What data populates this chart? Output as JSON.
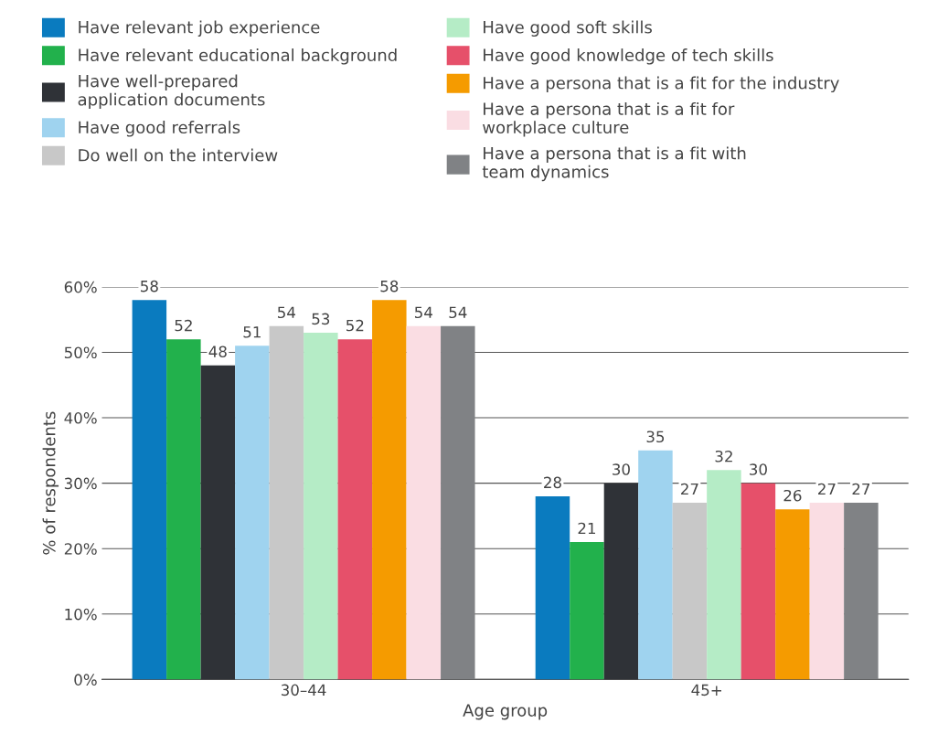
{
  "chart_data": {
    "type": "bar",
    "xlabel": "Age group",
    "ylabel": "% of respondents",
    "categories": [
      "30–44",
      "45+"
    ],
    "series": [
      {
        "name": "Have relevant job experience",
        "color": "#0a7bbf",
        "values": [
          58,
          28
        ]
      },
      {
        "name": "Have relevant educational background",
        "color": "#22b14c",
        "values": [
          52,
          21
        ]
      },
      {
        "name": "Have well-prepared\napplication documents",
        "color": "#2f3237",
        "values": [
          48,
          30
        ]
      },
      {
        "name": "Have good referrals",
        "color": "#9fd3ef",
        "values": [
          51,
          35
        ]
      },
      {
        "name": "Do well on the interview",
        "color": "#c8c8c8",
        "values": [
          54,
          27
        ]
      },
      {
        "name": "Have good soft skills",
        "color": "#b5ecc6",
        "values": [
          53,
          32
        ]
      },
      {
        "name": "Have good knowledge of tech skills",
        "color": "#e6506a",
        "values": [
          52,
          30
        ]
      },
      {
        "name": "Have a persona that is a fit for the industry",
        "color": "#f59b00",
        "values": [
          58,
          26
        ]
      },
      {
        "name": "Have a persona that is a fit for\nworkplace culture",
        "color": "#fadde3",
        "values": [
          54,
          27
        ]
      },
      {
        "name": "Have a persona that is a fit with\nteam dynamics",
        "color": "#808285",
        "values": [
          54,
          27
        ]
      }
    ],
    "ylim": [
      0,
      60
    ],
    "yticks": [
      {
        "value": 0,
        "label": "0%"
      },
      {
        "value": 10,
        "label": "10%"
      },
      {
        "value": 20,
        "label": "20%"
      },
      {
        "value": 30,
        "label": "30%"
      },
      {
        "value": 40,
        "label": "40%"
      },
      {
        "value": 50,
        "label": "50%"
      },
      {
        "value": 60,
        "label": "60%"
      }
    ],
    "grid": "y",
    "legend": "top",
    "data_labels": true
  }
}
